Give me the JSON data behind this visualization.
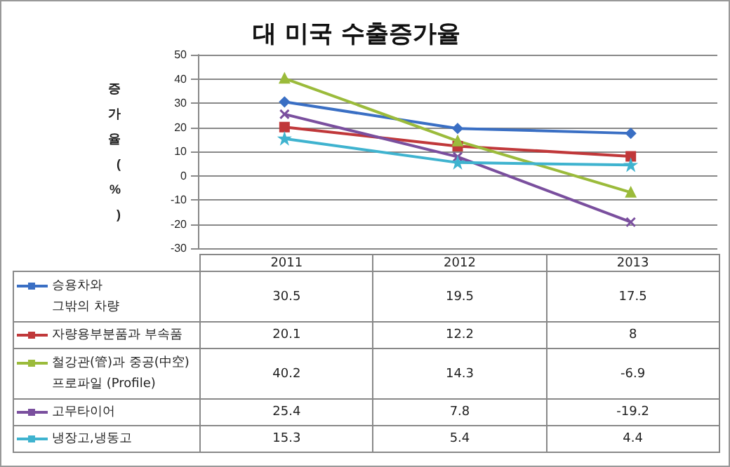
{
  "chart_data": {
    "type": "line",
    "title": "대 미국 수출증가율",
    "ylabel": "증가율(%)",
    "categories": [
      "2011",
      "2012",
      "2013"
    ],
    "series": [
      {
        "name": "승용차와\n그밖의 차량",
        "color": "#3a6fc4",
        "marker": "diamond",
        "values": [
          30.5,
          19.5,
          17.5
        ]
      },
      {
        "name": "자량용부분품과 부속품",
        "color": "#c0383a",
        "marker": "square",
        "values": [
          20.1,
          12.2,
          8
        ]
      },
      {
        "name": "철강관(管)과 중공(中空)\n프로파일 (Profile)",
        "color": "#9bbb3b",
        "marker": "triangle",
        "values": [
          40.2,
          14.3,
          -6.9
        ]
      },
      {
        "name": "고무타이어",
        "color": "#7a4f9e",
        "marker": "cross",
        "values": [
          25.4,
          7.8,
          -19.2
        ]
      },
      {
        "name": "냉장고,냉동고",
        "color": "#3fb3cf",
        "marker": "star",
        "values": [
          15.3,
          5.4,
          4.4
        ]
      }
    ],
    "ylim": [
      -30,
      50
    ],
    "yticks": [
      -30,
      -20,
      -10,
      0,
      10,
      20,
      30,
      40,
      50
    ],
    "grid": "y",
    "tick_labels": "y",
    "data_labels": true,
    "legend": "bottom left"
  }
}
